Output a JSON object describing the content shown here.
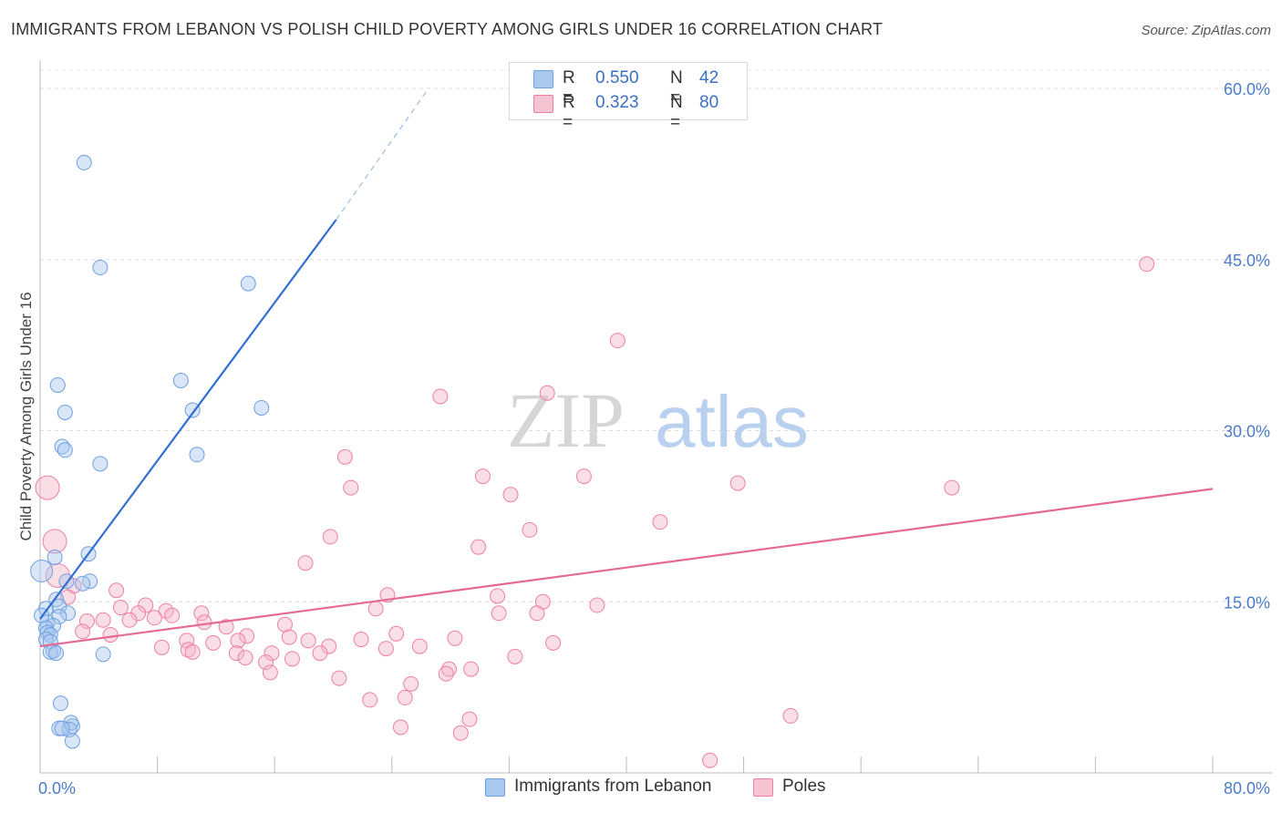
{
  "title": "IMMIGRANTS FROM LEBANON VS POLISH CHILD POVERTY AMONG GIRLS UNDER 16 CORRELATION CHART",
  "source": "Source: ZipAtlas.com",
  "watermark": {
    "zip": "ZIP",
    "atlas": "atlas"
  },
  "legend": {
    "rows": [
      {
        "r_key": "R =",
        "r_value": "0.550",
        "n_key": "N =",
        "n_value": "42",
        "color": "#a9c8ef"
      },
      {
        "r_key": "R =",
        "r_value": "0.323",
        "n_key": "N =",
        "n_value": "80",
        "color": "#f5b5c8"
      }
    ]
  },
  "bottom_legend": [
    {
      "label": "Immigrants from Lebanon",
      "color": "#a9c8ef"
    },
    {
      "label": "Poles",
      "color": "#f5b5c8"
    }
  ],
  "chart_data": {
    "type": "scatter",
    "title": "IMMIGRANTS FROM LEBANON VS POLISH CHILD POVERTY AMONG GIRLS UNDER 16 CORRELATION CHART",
    "xlabel": "",
    "ylabel": "Child Poverty Among Girls Under 16",
    "xlim": [
      0,
      80
    ],
    "ylim": [
      0,
      62
    ],
    "x_tick_labels": [
      {
        "value": 0,
        "label": "0.0%"
      },
      {
        "value": 80,
        "label": "80.0%"
      }
    ],
    "y_tick_labels": [
      {
        "value": 15,
        "label": "15.0%"
      },
      {
        "value": 30,
        "label": "30.0%"
      },
      {
        "value": 45,
        "label": "45.0%"
      },
      {
        "value": 60,
        "label": "60.0%"
      }
    ],
    "grid": "horizontal dashed",
    "legend_position": "top-center",
    "series": [
      {
        "name": "Immigrants from Lebanon",
        "color": "#6f9fe0",
        "trend": {
          "x0": 0,
          "y0": 13.5,
          "x1": 20.2,
          "y1": 48.5,
          "dashed_to_x": 26.5,
          "dashed_to_y": 60
        },
        "points": [
          [
            3.0,
            53.5
          ],
          [
            4.1,
            44.3
          ],
          [
            14.2,
            42.9
          ],
          [
            1.2,
            34.0
          ],
          [
            9.6,
            34.4
          ],
          [
            15.1,
            32.0
          ],
          [
            1.7,
            31.6
          ],
          [
            10.4,
            31.8
          ],
          [
            1.5,
            28.6
          ],
          [
            1.7,
            28.3
          ],
          [
            10.7,
            27.9
          ],
          [
            4.1,
            27.1
          ],
          [
            0.1,
            17.7
          ],
          [
            3.3,
            19.2
          ],
          [
            1.0,
            18.9
          ],
          [
            3.4,
            16.8
          ],
          [
            2.9,
            16.6
          ],
          [
            1.8,
            16.8
          ],
          [
            1.1,
            15.2
          ],
          [
            1.3,
            14.6
          ],
          [
            0.4,
            14.4
          ],
          [
            1.9,
            14.0
          ],
          [
            1.3,
            13.7
          ],
          [
            0.5,
            13.2
          ],
          [
            0.9,
            12.9
          ],
          [
            0.4,
            12.7
          ],
          [
            0.5,
            12.3
          ],
          [
            0.7,
            12.1
          ],
          [
            0.4,
            11.7
          ],
          [
            0.7,
            11.5
          ],
          [
            0.9,
            10.7
          ],
          [
            0.7,
            10.6
          ],
          [
            1.1,
            10.5
          ],
          [
            4.3,
            10.4
          ],
          [
            1.4,
            6.1
          ],
          [
            1.3,
            3.9
          ],
          [
            2.2,
            4.1
          ],
          [
            2.1,
            4.4
          ],
          [
            2.0,
            3.8
          ],
          [
            2.2,
            2.8
          ],
          [
            1.5,
            3.9
          ],
          [
            0.1,
            13.8
          ]
        ]
      },
      {
        "name": "Poles",
        "color": "#ef7fa3",
        "trend": {
          "x0": 0,
          "y0": 11.1,
          "x1": 80,
          "y1": 24.9
        },
        "points": [
          [
            75.5,
            44.6
          ],
          [
            39.4,
            37.9
          ],
          [
            34.6,
            33.3
          ],
          [
            27.3,
            33.0
          ],
          [
            20.8,
            27.7
          ],
          [
            0.5,
            25.0
          ],
          [
            21.2,
            25.0
          ],
          [
            30.2,
            26.0
          ],
          [
            32.1,
            24.4
          ],
          [
            37.1,
            26.0
          ],
          [
            47.6,
            25.4
          ],
          [
            62.2,
            25.0
          ],
          [
            1.0,
            20.3
          ],
          [
            33.4,
            21.3
          ],
          [
            42.3,
            22.0
          ],
          [
            19.8,
            20.7
          ],
          [
            29.9,
            19.8
          ],
          [
            18.1,
            18.4
          ],
          [
            1.2,
            17.3
          ],
          [
            2.3,
            16.4
          ],
          [
            1.9,
            15.4
          ],
          [
            5.2,
            16.0
          ],
          [
            23.7,
            15.6
          ],
          [
            31.2,
            15.5
          ],
          [
            34.3,
            15.0
          ],
          [
            38.0,
            14.7
          ],
          [
            7.2,
            14.7
          ],
          [
            5.5,
            14.5
          ],
          [
            22.9,
            14.4
          ],
          [
            31.3,
            14.0
          ],
          [
            33.9,
            14.0
          ],
          [
            11.0,
            14.0
          ],
          [
            8.6,
            14.2
          ],
          [
            6.7,
            14.0
          ],
          [
            7.8,
            13.6
          ],
          [
            9.0,
            13.8
          ],
          [
            3.2,
            13.3
          ],
          [
            6.1,
            13.4
          ],
          [
            11.2,
            13.2
          ],
          [
            16.7,
            13.0
          ],
          [
            4.3,
            13.4
          ],
          [
            12.7,
            12.8
          ],
          [
            2.9,
            12.4
          ],
          [
            4.8,
            12.1
          ],
          [
            14.1,
            12.0
          ],
          [
            17.0,
            11.9
          ],
          [
            24.3,
            12.2
          ],
          [
            28.3,
            11.8
          ],
          [
            21.9,
            11.7
          ],
          [
            13.5,
            11.6
          ],
          [
            10.0,
            11.6
          ],
          [
            18.3,
            11.6
          ],
          [
            11.8,
            11.4
          ],
          [
            19.7,
            11.1
          ],
          [
            25.9,
            11.1
          ],
          [
            35.0,
            11.4
          ],
          [
            8.3,
            11.0
          ],
          [
            10.1,
            10.8
          ],
          [
            10.4,
            10.6
          ],
          [
            15.8,
            10.5
          ],
          [
            13.4,
            10.5
          ],
          [
            23.6,
            10.9
          ],
          [
            19.1,
            10.5
          ],
          [
            32.4,
            10.2
          ],
          [
            14.0,
            10.1
          ],
          [
            17.2,
            10.0
          ],
          [
            15.4,
            9.7
          ],
          [
            29.4,
            9.1
          ],
          [
            27.9,
            9.1
          ],
          [
            27.7,
            8.7
          ],
          [
            15.7,
            8.8
          ],
          [
            20.4,
            8.3
          ],
          [
            25.3,
            7.8
          ],
          [
            22.5,
            6.4
          ],
          [
            24.9,
            6.6
          ],
          [
            51.2,
            5.0
          ],
          [
            29.3,
            4.7
          ],
          [
            24.6,
            4.0
          ],
          [
            28.7,
            3.5
          ],
          [
            45.7,
            1.1
          ]
        ]
      }
    ]
  }
}
